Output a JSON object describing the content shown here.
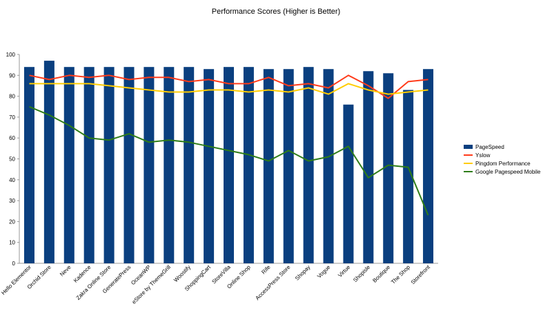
{
  "chart_data": {
    "type": "bar",
    "title": "Performance Scores (Higher is Better)",
    "xlabel": "",
    "ylabel": "",
    "ylim": [
      0,
      100
    ],
    "yticks": [
      0,
      10,
      20,
      30,
      40,
      50,
      60,
      70,
      80,
      90,
      100
    ],
    "grid": false,
    "legend_position": "right",
    "categories": [
      "Hello Elementor",
      "Orchid Store",
      "Neve",
      "Kadence",
      "Zakra Online Store",
      "GeneratePress",
      "OceanWP",
      "eStore by ThemeGrill",
      "Woostify",
      "ShoppingCart",
      "StoreVilla",
      "Online Shop",
      "Rife",
      "AccessPress Store",
      "Shopay",
      "Vogue",
      "Virtue",
      "Shopisle",
      "Boutique",
      "The Shop",
      "Storefront"
    ],
    "series": [
      {
        "name": "PageSpeed",
        "type": "bar",
        "color": "#0a3f7f",
        "values": [
          94,
          97,
          94,
          94,
          94,
          94,
          94,
          94,
          94,
          93,
          94,
          94,
          93,
          93,
          94,
          93,
          76,
          92,
          91,
          83,
          93
        ]
      },
      {
        "name": "Yslow",
        "type": "line",
        "color": "#ff3b1a",
        "values": [
          90,
          88,
          90,
          89,
          90,
          88,
          89,
          89,
          87,
          88,
          86,
          86,
          89,
          85,
          86,
          84,
          90,
          85,
          79,
          87,
          88
        ]
      },
      {
        "name": "Pingdom Performance",
        "type": "line",
        "color": "#ffcc00",
        "values": [
          86,
          86,
          86,
          86,
          85,
          84,
          83,
          82,
          82,
          83,
          83,
          82,
          83,
          82,
          84,
          81,
          86,
          83,
          81,
          82,
          83
        ]
      },
      {
        "name": "Google Pagespeed Mobile",
        "type": "line",
        "color": "#2e7d17",
        "values": [
          75,
          71,
          66,
          60,
          59,
          62,
          58,
          59,
          58,
          56,
          54,
          52,
          49,
          54,
          49,
          51,
          56,
          41,
          47,
          46,
          23
        ]
      }
    ]
  }
}
